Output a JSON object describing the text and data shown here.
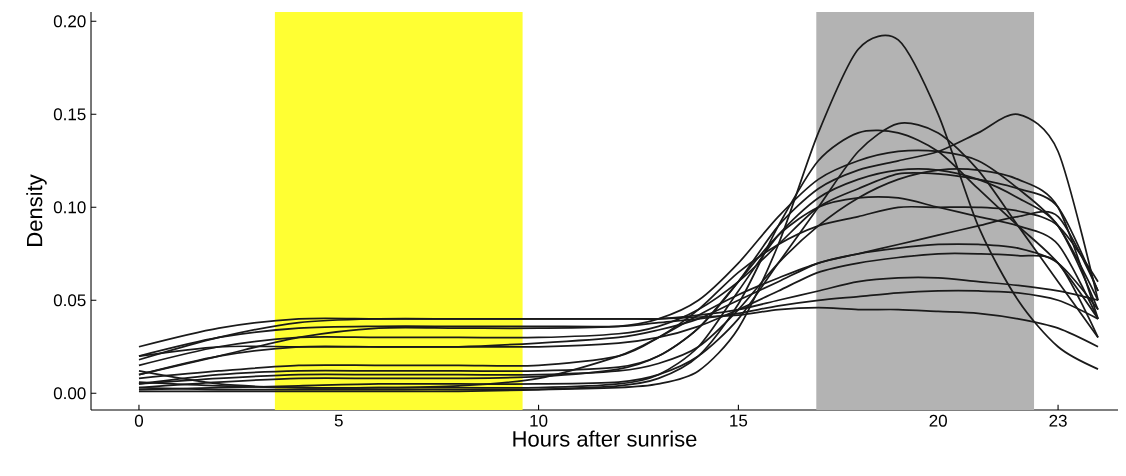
{
  "chart_data": {
    "type": "line",
    "xlabel": "Hours after sunrise",
    "ylabel": "Density",
    "xlim": [
      -1.2,
      24.5
    ],
    "ylim": [
      -0.009,
      0.205
    ],
    "xticks": [
      0,
      5,
      10,
      15,
      20,
      23
    ],
    "yticks": [
      {
        "value": 0,
        "label": "0.00"
      },
      {
        "value": 0.05,
        "label": "0.05"
      },
      {
        "value": 0.1,
        "label": "0.10"
      },
      {
        "value": 0.15,
        "label": "0.15"
      },
      {
        "value": 0.2,
        "label": "0.20"
      }
    ],
    "grid": false,
    "line_style": "solid",
    "x": [
      0,
      2,
      4,
      6,
      8,
      10,
      12,
      13,
      14,
      15,
      16,
      17,
      18,
      19,
      20,
      21,
      22,
      23,
      24
    ],
    "bands": [
      {
        "axis": "x",
        "from": 3.4,
        "to": 9.6,
        "color": "#ffff33"
      },
      {
        "axis": "x",
        "from": 16.95,
        "to": 22.4,
        "color": "#b3b3b3"
      }
    ],
    "series": [
      {
        "color": "#1a1a1a",
        "values": [
          0.003,
          0.002,
          0.002,
          0.002,
          0.002,
          0.002,
          0.003,
          0.005,
          0.012,
          0.035,
          0.08,
          0.14,
          0.185,
          0.19,
          0.15,
          0.09,
          0.05,
          0.025,
          0.013
        ]
      },
      {
        "color": "#1a1a1a",
        "values": [
          0.025,
          0.035,
          0.04,
          0.04,
          0.04,
          0.04,
          0.04,
          0.04,
          0.042,
          0.045,
          0.05,
          0.055,
          0.06,
          0.062,
          0.062,
          0.06,
          0.058,
          0.055,
          0.05
        ]
      },
      {
        "color": "#1a1a1a",
        "values": [
          0.01,
          0.02,
          0.03,
          0.035,
          0.035,
          0.035,
          0.036,
          0.04,
          0.05,
          0.07,
          0.095,
          0.115,
          0.125,
          0.13,
          0.13,
          0.125,
          0.11,
          0.09,
          0.05
        ]
      },
      {
        "color": "#1a1a1a",
        "values": [
          0.005,
          0.01,
          0.012,
          0.012,
          0.012,
          0.012,
          0.014,
          0.02,
          0.035,
          0.06,
          0.09,
          0.11,
          0.12,
          0.125,
          0.13,
          0.14,
          0.15,
          0.13,
          0.05
        ]
      },
      {
        "color": "#1a1a1a",
        "values": [
          0.015,
          0.025,
          0.03,
          0.03,
          0.03,
          0.03,
          0.032,
          0.036,
          0.045,
          0.06,
          0.08,
          0.1,
          0.11,
          0.118,
          0.118,
          0.115,
          0.11,
          0.1,
          0.055
        ]
      },
      {
        "color": "#1a1a1a",
        "values": [
          0.002,
          0.003,
          0.004,
          0.005,
          0.005,
          0.005,
          0.006,
          0.01,
          0.02,
          0.04,
          0.07,
          0.1,
          0.13,
          0.145,
          0.14,
          0.12,
          0.09,
          0.06,
          0.03
        ]
      },
      {
        "color": "#1a1a1a",
        "values": [
          0.02,
          0.03,
          0.035,
          0.036,
          0.036,
          0.036,
          0.036,
          0.038,
          0.04,
          0.043,
          0.047,
          0.05,
          0.052,
          0.054,
          0.055,
          0.055,
          0.054,
          0.05,
          0.04
        ]
      },
      {
        "color": "#1a1a1a",
        "values": [
          0.008,
          0.012,
          0.015,
          0.015,
          0.015,
          0.015,
          0.02,
          0.03,
          0.045,
          0.065,
          0.08,
          0.09,
          0.095,
          0.1,
          0.1,
          0.1,
          0.098,
          0.09,
          0.06
        ]
      },
      {
        "color": "#1a1a1a",
        "values": [
          0.02,
          0.025,
          0.025,
          0.025,
          0.025,
          0.027,
          0.03,
          0.034,
          0.04,
          0.05,
          0.06,
          0.07,
          0.075,
          0.078,
          0.08,
          0.08,
          0.078,
          0.07,
          0.045
        ]
      },
      {
        "color": "#1a1a1a",
        "values": [
          0.012,
          0.005,
          0.003,
          0.003,
          0.003,
          0.003,
          0.005,
          0.01,
          0.025,
          0.055,
          0.085,
          0.105,
          0.115,
          0.12,
          0.12,
          0.115,
          0.105,
          0.09,
          0.045
        ]
      },
      {
        "color": "#1a1a1a",
        "values": [
          0.005,
          0.008,
          0.01,
          0.01,
          0.01,
          0.01,
          0.012,
          0.016,
          0.025,
          0.045,
          0.07,
          0.09,
          0.105,
          0.115,
          0.12,
          0.12,
          0.115,
          0.1,
          0.04
        ]
      },
      {
        "color": "#1a1a1a",
        "values": [
          0.01,
          0.02,
          0.025,
          0.025,
          0.025,
          0.025,
          0.027,
          0.03,
          0.036,
          0.045,
          0.055,
          0.065,
          0.07,
          0.073,
          0.075,
          0.075,
          0.074,
          0.07,
          0.03
        ]
      },
      {
        "color": "#1a1a1a",
        "values": [
          0.001,
          0.001,
          0.001,
          0.001,
          0.001,
          0.002,
          0.004,
          0.008,
          0.02,
          0.048,
          0.09,
          0.125,
          0.14,
          0.14,
          0.13,
          0.11,
          0.09,
          0.07,
          0.04
        ]
      },
      {
        "color": "#1a1a1a",
        "values": [
          0.018,
          0.03,
          0.038,
          0.04,
          0.04,
          0.04,
          0.04,
          0.04,
          0.041,
          0.042,
          0.045,
          0.046,
          0.045,
          0.045,
          0.044,
          0.043,
          0.04,
          0.035,
          0.025
        ]
      },
      {
        "color": "#1a1a1a",
        "values": [
          0.003,
          0.006,
          0.008,
          0.008,
          0.008,
          0.009,
          0.013,
          0.02,
          0.035,
          0.06,
          0.085,
          0.1,
          0.105,
          0.105,
          0.1,
          0.095,
          0.09,
          0.08,
          0.04
        ]
      },
      {
        "color": "#1a1a1a",
        "values": [
          0.006,
          0.004,
          0.003,
          0.003,
          0.004,
          0.008,
          0.02,
          0.03,
          0.042,
          0.053,
          0.062,
          0.07,
          0.075,
          0.08,
          0.085,
          0.09,
          0.095,
          0.095,
          0.055
        ]
      }
    ]
  }
}
